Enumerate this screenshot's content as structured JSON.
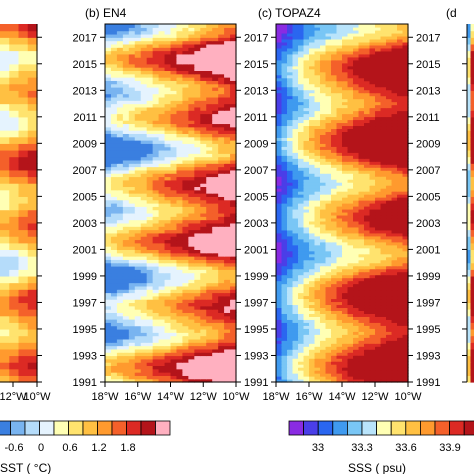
{
  "chart_data": [
    {
      "type": "heatmap",
      "panel": "a",
      "title": "",
      "y_ticks": [
        "1991",
        "1993",
        "1995",
        "1997",
        "1999",
        "2001",
        "2003",
        "2005",
        "2007",
        "2009",
        "2011",
        "2013",
        "2015",
        "2017"
      ],
      "x_ticks": [
        "12°W",
        "10°W"
      ],
      "colorbar": {
        "label": "SST ( °C)",
        "ticks": [
          "-0.6",
          "0",
          "0.6",
          "1.2",
          "1.8"
        ],
        "colors": [
          "#3a7fe0",
          "#79b4f0",
          "#b5dcfa",
          "#e5f3fe",
          "#ffffb4",
          "#ffe36e",
          "#ffc042",
          "#ff9a2e",
          "#f4602a",
          "#dc2a24",
          "#b4141a",
          "#ffb0c0"
        ]
      }
    },
    {
      "type": "heatmap",
      "panel": "b",
      "title": "(b) EN4",
      "ylim": [
        1991,
        2018
      ],
      "xlim_lon_west": [
        18,
        10
      ],
      "y_ticks": [
        "1991",
        "1993",
        "1995",
        "1997",
        "1999",
        "2001",
        "2003",
        "2005",
        "2007",
        "2009",
        "2011",
        "2013",
        "2015",
        "2017"
      ],
      "x_ticks": [
        "18°W",
        "16°W",
        "14°W",
        "12°W",
        "10°W"
      ]
    },
    {
      "type": "heatmap",
      "panel": "c",
      "title": "(c) TOPAZ4",
      "ylim": [
        1991,
        2018
      ],
      "xlim_lon_west": [
        18,
        10
      ],
      "y_ticks": [
        "1991",
        "1993",
        "1995",
        "1997",
        "1999",
        "2001",
        "2003",
        "2005",
        "2007",
        "2009",
        "2011",
        "2013",
        "2015",
        "2017"
      ],
      "x_ticks": [
        "18°W",
        "16°W",
        "14°W",
        "12°W",
        "10°W"
      ],
      "colorbar": {
        "label": "SSS ( psu)",
        "ticks": [
          "33",
          "33.3",
          "33.6",
          "33.9"
        ],
        "colors": [
          "#8a2be2",
          "#4a3ee8",
          "#2a66f0",
          "#3f9aef",
          "#79c6f5",
          "#b9e4fb",
          "#ffffb4",
          "#ffe36e",
          "#ffc042",
          "#ff9a2e",
          "#f4602a",
          "#dc2a24",
          "#b4141a"
        ]
      }
    },
    {
      "type": "heatmap",
      "panel": "d",
      "title": "(d",
      "y_ticks": [
        "1991",
        "1993",
        "1995",
        "1997",
        "1999",
        "2001",
        "2003",
        "2005",
        "2007",
        "2009",
        "2011",
        "2013",
        "2015",
        "2017"
      ]
    }
  ]
}
